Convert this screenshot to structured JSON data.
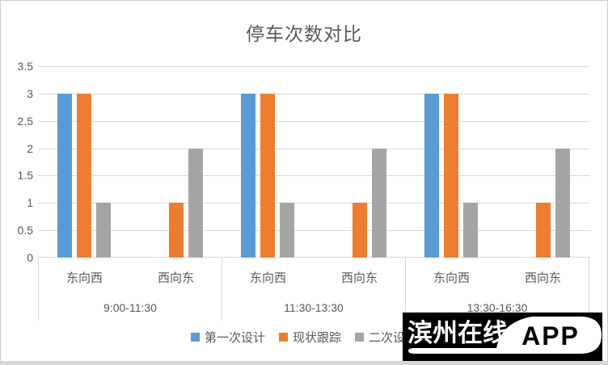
{
  "chart_data": {
    "type": "bar",
    "title": "停车次数对比",
    "xlabel": "",
    "ylabel": "",
    "ylim": [
      0,
      3.5
    ],
    "yticks": [
      "0",
      "0.5",
      "1",
      "1.5",
      "2",
      "2.5",
      "3",
      "3.5"
    ],
    "ytick_values": [
      0,
      0.5,
      1,
      1.5,
      2,
      2.5,
      3,
      3.5
    ],
    "grid": true,
    "legend_position": "bottom",
    "group_labels": [
      "9:00-11:30",
      "11:30-13:30",
      "13:30-16:30"
    ],
    "categories": [
      "东向西",
      "西向东"
    ],
    "series": [
      {
        "name": "第一次设计",
        "color": "#5B9BD5",
        "values": [
          [
            3,
            0
          ],
          [
            3,
            0
          ],
          [
            3,
            0
          ]
        ]
      },
      {
        "name": "现状跟踪",
        "color": "#ED7D31",
        "values": [
          [
            3,
            1
          ],
          [
            3,
            1
          ],
          [
            3,
            1
          ]
        ]
      },
      {
        "name": "二次设计",
        "color": "#A5A5A5",
        "values": [
          [
            1,
            2
          ],
          [
            1,
            2
          ],
          [
            1,
            2
          ]
        ]
      }
    ]
  },
  "watermark": {
    "text": "滨州在线",
    "badge": "APP",
    "bg_color": "#000000",
    "text_color": "#FFFFFF"
  },
  "styles": {
    "text_color": "#595959",
    "gridline_color": "#D9D9D9"
  }
}
